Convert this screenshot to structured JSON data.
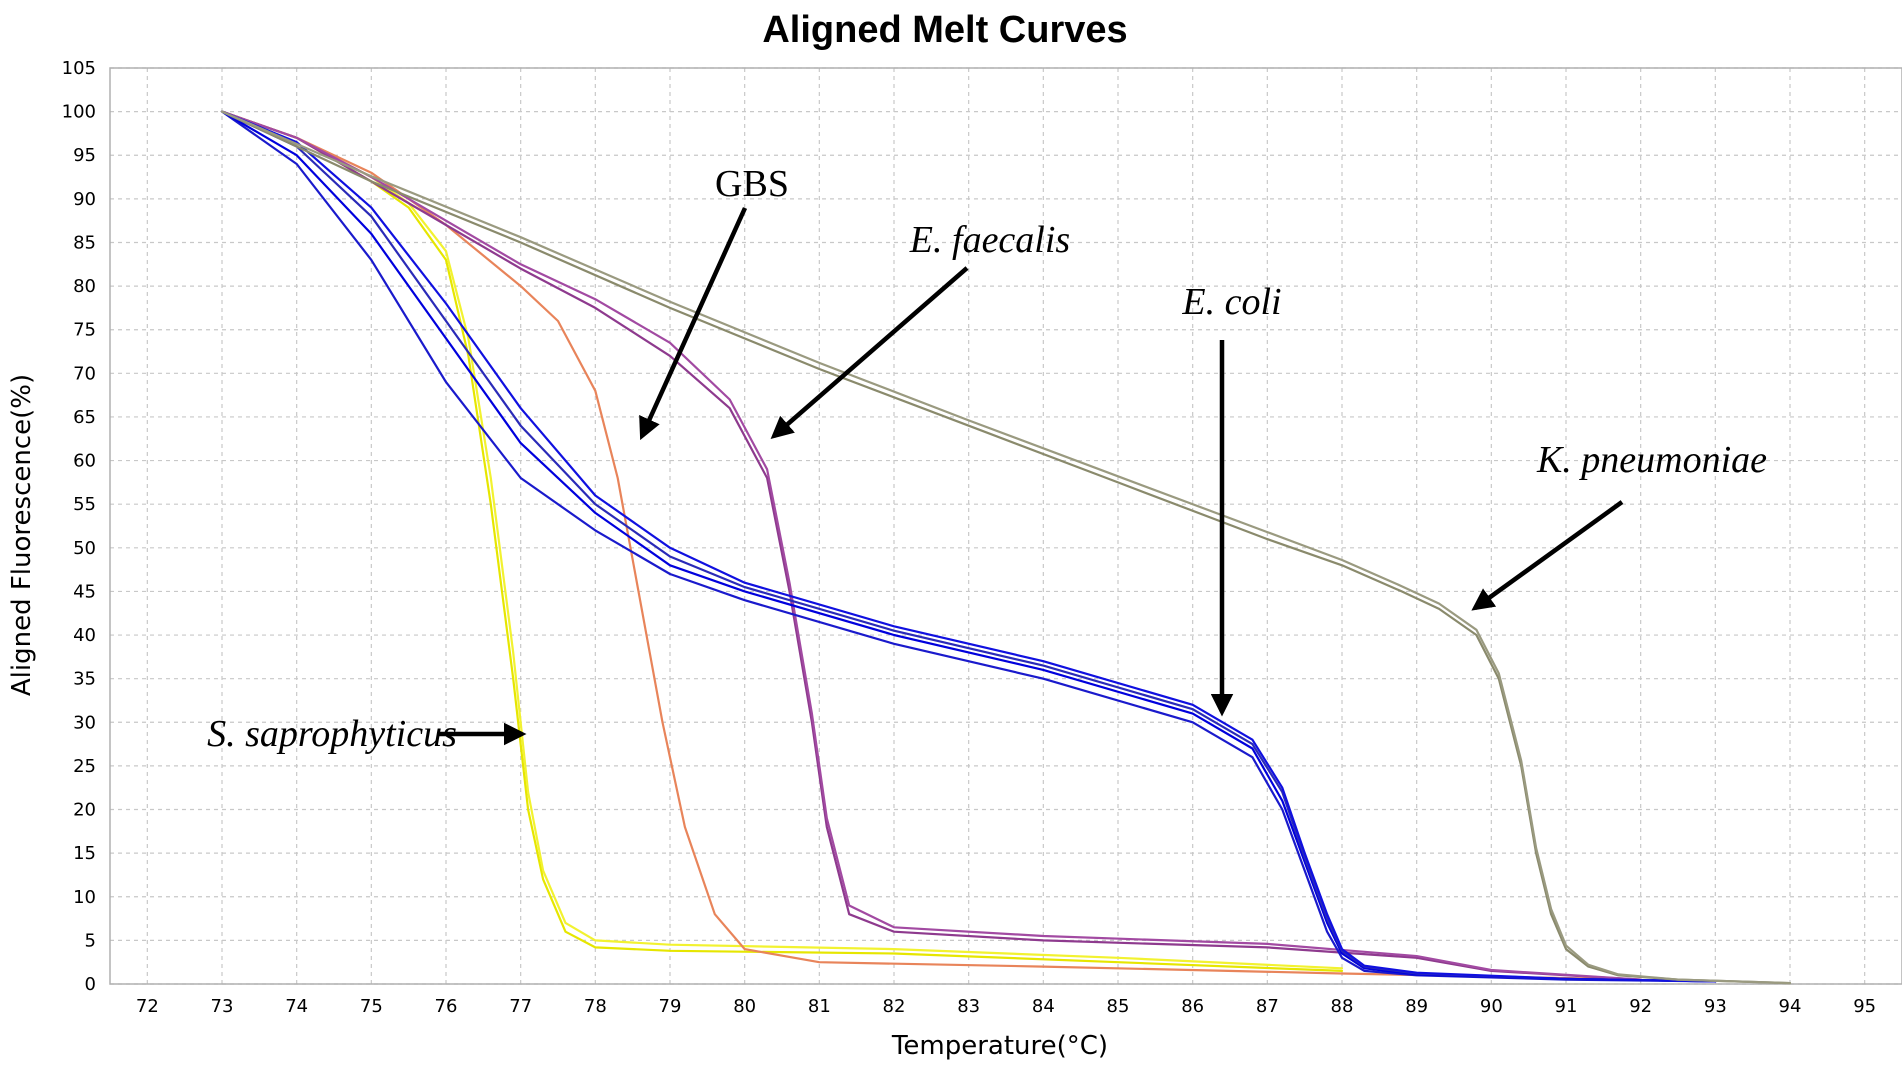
{
  "chart_data": {
    "type": "line",
    "title": "Aligned Melt Curves",
    "xlabel": "Temperature(°C)",
    "ylabel": "Aligned Fluorescence(%)",
    "xlim": [
      71.5,
      95.5
    ],
    "ylim": [
      0,
      105
    ],
    "xticks": [
      72,
      73,
      74,
      75,
      76,
      77,
      78,
      79,
      80,
      81,
      82,
      83,
      84,
      85,
      86,
      87,
      88,
      89,
      90,
      91,
      92,
      93,
      94,
      95
    ],
    "yticks": [
      0,
      5,
      10,
      15,
      20,
      25,
      30,
      35,
      40,
      45,
      50,
      55,
      60,
      65,
      70,
      75,
      80,
      85,
      90,
      95,
      100,
      105
    ],
    "grid": true,
    "series": [
      {
        "name": "S. saprophyticus",
        "color": "#e6e600",
        "x": [
          73,
          74,
          75,
          75.5,
          76,
          76.3,
          76.6,
          76.9,
          77.1,
          77.3,
          77.6,
          78,
          79,
          82,
          85,
          88
        ],
        "y": [
          100,
          97,
          92,
          89,
          83,
          72,
          55,
          35,
          20,
          12,
          6,
          4.2,
          3.8,
          3.5,
          2.5,
          1.5
        ]
      },
      {
        "name": "S. saprophyticus",
        "color": "#f2f230",
        "x": [
          73,
          74,
          75,
          75.5,
          76,
          76.3,
          76.6,
          76.9,
          77.1,
          77.3,
          77.6,
          78,
          79,
          82,
          85,
          88
        ],
        "y": [
          100,
          97,
          92.5,
          89.5,
          84,
          74,
          58,
          38,
          22,
          13,
          7,
          5,
          4.5,
          4,
          3,
          1.8
        ]
      },
      {
        "name": "GBS",
        "color": "#e8845a",
        "x": [
          73,
          74,
          75,
          76,
          77,
          77.5,
          78,
          78.3,
          78.6,
          78.9,
          79.2,
          79.6,
          80,
          81,
          84,
          88,
          92
        ],
        "y": [
          100,
          97,
          93,
          87,
          80,
          76,
          68,
          58,
          44,
          30,
          18,
          8,
          4,
          2.5,
          2,
          1.2,
          0.5
        ]
      },
      {
        "name": "E. faecalis",
        "color": "#8e3a8e",
        "x": [
          73,
          74,
          75,
          76,
          77,
          78,
          79,
          79.8,
          80.3,
          80.6,
          80.9,
          81.1,
          81.4,
          82,
          84,
          87,
          89,
          90,
          92
        ],
        "y": [
          100,
          97,
          92,
          87,
          82,
          77.5,
          72,
          66,
          58,
          45,
          30,
          18,
          8,
          6,
          5,
          4.2,
          3,
          1.5,
          0.5
        ]
      },
      {
        "name": "E. faecalis",
        "color": "#a24aa2",
        "x": [
          73,
          74,
          75,
          76,
          77,
          78,
          79,
          79.8,
          80.3,
          80.6,
          80.9,
          81.1,
          81.4,
          82,
          84,
          87,
          89,
          90,
          92
        ],
        "y": [
          100,
          97,
          92.5,
          87.5,
          82.5,
          78.5,
          73.5,
          67,
          59,
          46,
          31,
          19,
          9,
          6.5,
          5.5,
          4.6,
          3.2,
          1.6,
          0.5
        ]
      },
      {
        "name": "E. coli",
        "color": "#1a1acc",
        "x": [
          73,
          74,
          75,
          76,
          77,
          78,
          79,
          80,
          82,
          84,
          86,
          86.8,
          87.2,
          87.5,
          87.8,
          88,
          88.3,
          89,
          91,
          93
        ],
        "y": [
          100,
          94,
          83,
          69,
          58,
          52,
          47,
          44,
          39,
          35,
          30,
          26,
          20,
          13,
          6,
          3,
          1.5,
          1,
          0.5,
          0.3
        ]
      },
      {
        "name": "E. coli",
        "color": "#0000dd",
        "x": [
          73,
          74,
          75,
          76,
          77,
          78,
          79,
          80,
          82,
          84,
          86,
          86.8,
          87.2,
          87.5,
          87.8,
          88,
          88.3,
          89,
          91,
          93
        ],
        "y": [
          100,
          95,
          86,
          74,
          62,
          54,
          48,
          45,
          40,
          36,
          31,
          27,
          21,
          14,
          7,
          3.5,
          1.8,
          1.1,
          0.6,
          0.3
        ]
      },
      {
        "name": "E. coli",
        "color": "#2a2ab8",
        "x": [
          73,
          74,
          75,
          76,
          77,
          78,
          79,
          80,
          82,
          84,
          86,
          86.8,
          87.2,
          87.5,
          87.8,
          88,
          88.3,
          89,
          91,
          93
        ],
        "y": [
          100,
          96,
          88,
          76,
          64,
          55,
          49,
          45.5,
          40.5,
          36.5,
          31.5,
          27.5,
          22,
          14.5,
          7.5,
          3.8,
          2,
          1.2,
          0.6,
          0.3
        ]
      },
      {
        "name": "E. coli",
        "color": "#1010e0",
        "x": [
          73,
          74,
          75,
          76,
          77,
          78,
          79,
          80,
          82,
          84,
          86,
          86.8,
          87.2,
          87.5,
          87.8,
          88,
          88.3,
          89,
          91,
          93
        ],
        "y": [
          100,
          96.5,
          89,
          78,
          66,
          56,
          50,
          46,
          41,
          37,
          32,
          28,
          22.5,
          15,
          8,
          4,
          2.1,
          1.3,
          0.6,
          0.3
        ]
      },
      {
        "name": "K. pneumoniae",
        "color": "#8a8a6c",
        "x": [
          73,
          75,
          77,
          79,
          81,
          83,
          85,
          87,
          88,
          88.8,
          89.3,
          89.8,
          90.1,
          90.4,
          90.6,
          90.8,
          91,
          91.3,
          91.7,
          92.5,
          94
        ],
        "y": [
          100,
          92,
          85,
          77.5,
          70.5,
          64,
          57.5,
          51,
          48,
          45,
          43,
          40,
          35,
          25,
          15,
          8,
          4,
          2,
          1,
          0.5,
          0.1
        ]
      },
      {
        "name": "K. pneumoniae",
        "color": "#9a9a80",
        "x": [
          73,
          75,
          77,
          79,
          81,
          83,
          85,
          87,
          88,
          88.8,
          89.3,
          89.8,
          90.1,
          90.4,
          90.6,
          90.8,
          91,
          91.3,
          91.7,
          92.5,
          94
        ],
        "y": [
          100,
          92.6,
          85.6,
          78.2,
          71.2,
          64.6,
          58.2,
          51.8,
          48.6,
          45.6,
          43.6,
          40.6,
          35.6,
          25.6,
          15.6,
          8.6,
          4.4,
          2.2,
          1.1,
          0.5,
          0.1
        ]
      }
    ],
    "annotations": [
      {
        "text": "GBS",
        "italic": false
      },
      {
        "text": "E. faecalis",
        "italic": true
      },
      {
        "text": "E. coli",
        "italic": true
      },
      {
        "text": "K. pneumoniae",
        "italic": true
      },
      {
        "text": "S. saprophyticus",
        "italic": true
      }
    ]
  }
}
